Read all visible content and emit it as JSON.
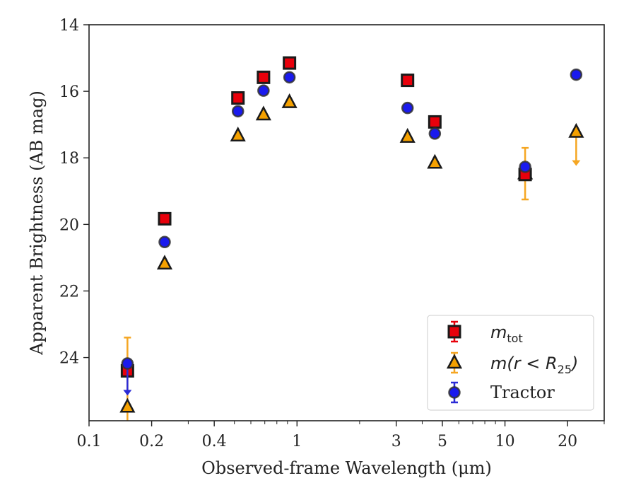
{
  "chart_data": {
    "type": "scatter",
    "xscale": "log",
    "xlim": [
      0.1,
      30
    ],
    "ylim": [
      14,
      25.9
    ],
    "yinverted": true,
    "xlabel": "Observed-frame Wavelength (μm)",
    "ylabel": "Apparent Brightness (AB mag)",
    "xticks": [
      0.1,
      0.2,
      0.4,
      1,
      3,
      5,
      10,
      20
    ],
    "xtick_labels": [
      "0.1",
      "0.2",
      "0.4",
      "1",
      "3",
      "5",
      "10",
      "20"
    ],
    "yticks": [
      14,
      16,
      18,
      20,
      22,
      24
    ],
    "ytick_labels": [
      "14",
      "16",
      "18",
      "20",
      "22",
      "24"
    ],
    "legend_position": "lower-right",
    "series": [
      {
        "name": "m_tot",
        "marker": "square",
        "color": "#e8000b",
        "errcolor": "#e8000b",
        "points": [
          {
            "x": 0.153,
            "y": 24.4
          },
          {
            "x": 0.231,
            "y": 19.83
          },
          {
            "x": 0.52,
            "y": 16.2
          },
          {
            "x": 0.69,
            "y": 15.58
          },
          {
            "x": 0.92,
            "y": 15.15
          },
          {
            "x": 3.4,
            "y": 15.67
          },
          {
            "x": 4.6,
            "y": 16.92
          },
          {
            "x": 12.5,
            "y": 18.5
          }
        ]
      },
      {
        "name": "m(r < R25)",
        "marker": "triangle",
        "color": "#f5a100",
        "errcolor": "#f5a623",
        "points": [
          {
            "x": 0.153,
            "y": 25.48,
            "err_low": 23.4,
            "err_high": 25.9
          },
          {
            "x": 0.231,
            "y": 21.18
          },
          {
            "x": 0.52,
            "y": 17.33
          },
          {
            "x": 0.69,
            "y": 16.7
          },
          {
            "x": 0.92,
            "y": 16.33
          },
          {
            "x": 3.4,
            "y": 17.37
          },
          {
            "x": 4.6,
            "y": 18.15
          },
          {
            "x": 12.5,
            "y": 18.47,
            "err_low": 17.7,
            "err_high": 19.25
          },
          {
            "x": 22,
            "y": 17.22,
            "upper_limit_to": 18.2
          }
        ]
      },
      {
        "name": "Tractor",
        "marker": "circle",
        "color": "#1a1aee",
        "errcolor": "#2b2bd6",
        "points": [
          {
            "x": 0.153,
            "y": 24.18,
            "upper_limit_to": 25.1
          },
          {
            "x": 0.231,
            "y": 20.53
          },
          {
            "x": 0.52,
            "y": 16.6
          },
          {
            "x": 0.69,
            "y": 15.98
          },
          {
            "x": 0.92,
            "y": 15.58
          },
          {
            "x": 3.4,
            "y": 16.5
          },
          {
            "x": 4.6,
            "y": 17.27
          },
          {
            "x": 12.5,
            "y": 18.27
          },
          {
            "x": 22,
            "y": 15.5
          }
        ]
      }
    ]
  },
  "legend": {
    "tot_main": "m",
    "tot_sub": "tot",
    "r25_main": "m(r < R",
    "r25_sub": "25",
    "r25_close": ")",
    "tractor": "Tractor"
  }
}
